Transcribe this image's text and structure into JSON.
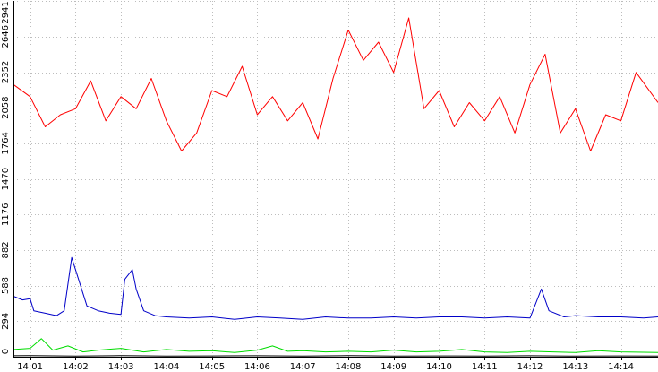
{
  "chart_data": {
    "type": "line",
    "title": "",
    "xlabel": "",
    "ylabel": "",
    "ylim": [
      0,
      2941
    ],
    "xlim": [
      "14:00:38",
      "14:14:49"
    ],
    "grid": true,
    "legend": "none",
    "y_ticks": [
      {
        "value": 0,
        "label": "0"
      },
      {
        "value": 294,
        "label": "294"
      },
      {
        "value": 588,
        "label": "588"
      },
      {
        "value": 882,
        "label": "882"
      },
      {
        "value": 1176,
        "label": "1176"
      },
      {
        "value": 1470,
        "label": "1470"
      },
      {
        "value": 1764,
        "label": "1764"
      },
      {
        "value": 2058,
        "label": "2058"
      },
      {
        "value": 2352,
        "label": "2352"
      },
      {
        "value": 2646,
        "label": "2646"
      },
      {
        "value": 2941,
        "label": "2941"
      }
    ],
    "x_ticks": [
      {
        "value": "14:01",
        "label": "14:01"
      },
      {
        "value": "14:02",
        "label": "14:02"
      },
      {
        "value": "14:03",
        "label": "14:03"
      },
      {
        "value": "14:04",
        "label": "14:04"
      },
      {
        "value": "14:05",
        "label": "14:05"
      },
      {
        "value": "14:06",
        "label": "14:06"
      },
      {
        "value": "14:07",
        "label": "14:07"
      },
      {
        "value": "14:08",
        "label": "14:08"
      },
      {
        "value": "14:09",
        "label": "14:09"
      },
      {
        "value": "14:10",
        "label": "14:10"
      },
      {
        "value": "14:11",
        "label": "14:11"
      },
      {
        "value": "14:12",
        "label": "14:12"
      },
      {
        "value": "14:13",
        "label": "14:13"
      },
      {
        "value": "14:14",
        "label": "14:14"
      }
    ],
    "series": [
      {
        "color": "#ff0000",
        "x": [
          "14:00:38",
          "14:01:00",
          "14:01:20",
          "14:01:40",
          "14:02:00",
          "14:02:20",
          "14:02:40",
          "14:03:00",
          "14:03:20",
          "14:03:40",
          "14:04:00",
          "14:04:20",
          "14:04:40",
          "14:05:00",
          "14:05:20",
          "14:05:40",
          "14:06:00",
          "14:06:20",
          "14:06:40",
          "14:07:00",
          "14:07:20",
          "14:07:40",
          "14:08:00",
          "14:08:20",
          "14:08:40",
          "14:09:00",
          "14:09:20",
          "14:09:40",
          "14:10:00",
          "14:10:20",
          "14:10:40",
          "14:11:00",
          "14:11:20",
          "14:11:40",
          "14:12:00",
          "14:12:20",
          "14:12:40",
          "14:13:00",
          "14:13:20",
          "14:13:40",
          "14:14:00",
          "14:14:20",
          "14:14:49"
        ],
        "y": [
          2250,
          2150,
          1900,
          2000,
          2050,
          2280,
          1950,
          2150,
          2050,
          2300,
          1950,
          1700,
          1850,
          2200,
          2150,
          2400,
          2000,
          2150,
          1950,
          2100,
          1800,
          2300,
          2700,
          2450,
          2600,
          2350,
          2800,
          2050,
          2200,
          1900,
          2100,
          1950,
          2150,
          1850,
          2250,
          2500,
          1850,
          2050,
          1700,
          2000,
          1950,
          2350,
          2100
        ]
      },
      {
        "color": "#0000c8",
        "x": [
          "14:00:38",
          "14:00:50",
          "14:01:00",
          "14:01:05",
          "14:01:20",
          "14:01:35",
          "14:01:45",
          "14:01:50",
          "14:01:55",
          "14:02:05",
          "14:02:15",
          "14:02:30",
          "14:02:45",
          "14:03:00",
          "14:03:05",
          "14:03:15",
          "14:03:20",
          "14:03:30",
          "14:03:45",
          "14:04:00",
          "14:04:30",
          "14:05:00",
          "14:05:30",
          "14:06:00",
          "14:06:30",
          "14:07:00",
          "14:07:30",
          "14:08:00",
          "14:08:30",
          "14:09:00",
          "14:09:30",
          "14:10:00",
          "14:10:30",
          "14:11:00",
          "14:11:30",
          "14:12:00",
          "14:12:10",
          "14:12:15",
          "14:12:25",
          "14:12:45",
          "14:13:00",
          "14:13:30",
          "14:14:00",
          "14:14:30",
          "14:14:49"
        ],
        "y": [
          500,
          470,
          480,
          380,
          360,
          340,
          380,
          600,
          820,
          620,
          420,
          380,
          360,
          350,
          640,
          720,
          560,
          380,
          340,
          330,
          320,
          330,
          310,
          330,
          320,
          310,
          330,
          320,
          320,
          330,
          320,
          330,
          330,
          320,
          330,
          320,
          480,
          560,
          380,
          330,
          340,
          330,
          330,
          320,
          330
        ]
      },
      {
        "color": "#00dc00",
        "x": [
          "14:00:38",
          "14:01:00",
          "14:01:15",
          "14:01:30",
          "14:01:50",
          "14:02:10",
          "14:02:30",
          "14:03:00",
          "14:03:30",
          "14:04:00",
          "14:04:30",
          "14:05:00",
          "14:05:30",
          "14:06:00",
          "14:06:20",
          "14:06:40",
          "14:07:00",
          "14:07:30",
          "14:08:00",
          "14:08:30",
          "14:09:00",
          "14:09:30",
          "14:10:00",
          "14:10:30",
          "14:11:00",
          "14:11:30",
          "14:12:00",
          "14:12:30",
          "14:13:00",
          "14:13:30",
          "14:14:00",
          "14:14:49"
        ],
        "y": [
          60,
          70,
          150,
          55,
          90,
          40,
          55,
          70,
          40,
          60,
          45,
          50,
          35,
          55,
          90,
          45,
          50,
          40,
          45,
          40,
          55,
          40,
          45,
          60,
          40,
          35,
          45,
          40,
          35,
          50,
          40,
          35
        ]
      },
      {
        "color": "#000000",
        "x": [
          "14:00:38",
          "14:01:00",
          "14:02:00",
          "14:03:00",
          "14:04:00",
          "14:05:00",
          "14:06:00",
          "14:07:00",
          "14:08:00",
          "14:09:00",
          "14:10:00",
          "14:11:00",
          "14:12:00",
          "14:13:00",
          "14:14:00",
          "14:14:49"
        ],
        "y": [
          8,
          10,
          6,
          9,
          5,
          7,
          8,
          6,
          9,
          5,
          7,
          6,
          8,
          5,
          7,
          6
        ]
      }
    ]
  }
}
